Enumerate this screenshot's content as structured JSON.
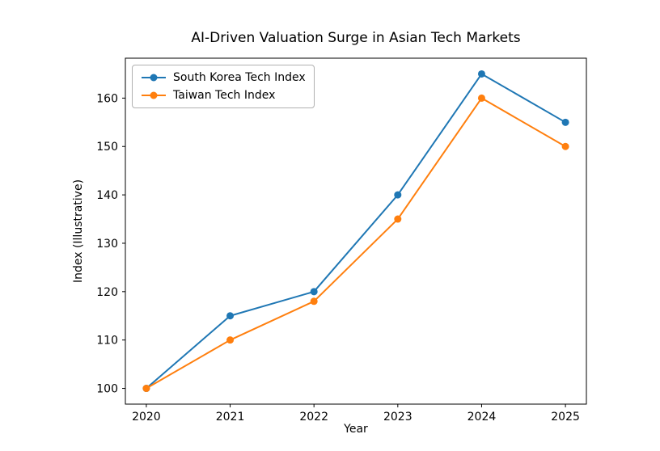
{
  "chart_data": {
    "type": "line",
    "title": "AI-Driven Valuation Surge in Asian Tech Markets",
    "xlabel": "Year",
    "ylabel": "Index (Illustrative)",
    "x": [
      2020,
      2021,
      2022,
      2023,
      2024,
      2025
    ],
    "x_tick_labels": [
      "2020",
      "2021",
      "2022",
      "2023",
      "2024",
      "2025"
    ],
    "y_ticks": [
      100,
      110,
      120,
      130,
      140,
      150,
      160
    ],
    "xlim": [
      2019.75,
      2025.25
    ],
    "ylim": [
      96.75,
      168.25
    ],
    "grid": false,
    "legend_position": "upper left",
    "series": [
      {
        "name": "South Korea Tech Index",
        "color": "#1f77b4",
        "marker": "circle",
        "values": [
          100,
          115,
          120,
          140,
          165,
          155
        ]
      },
      {
        "name": "Taiwan Tech Index",
        "color": "#ff7f0e",
        "marker": "circle",
        "values": [
          100,
          110,
          118,
          135,
          160,
          150
        ]
      }
    ]
  }
}
